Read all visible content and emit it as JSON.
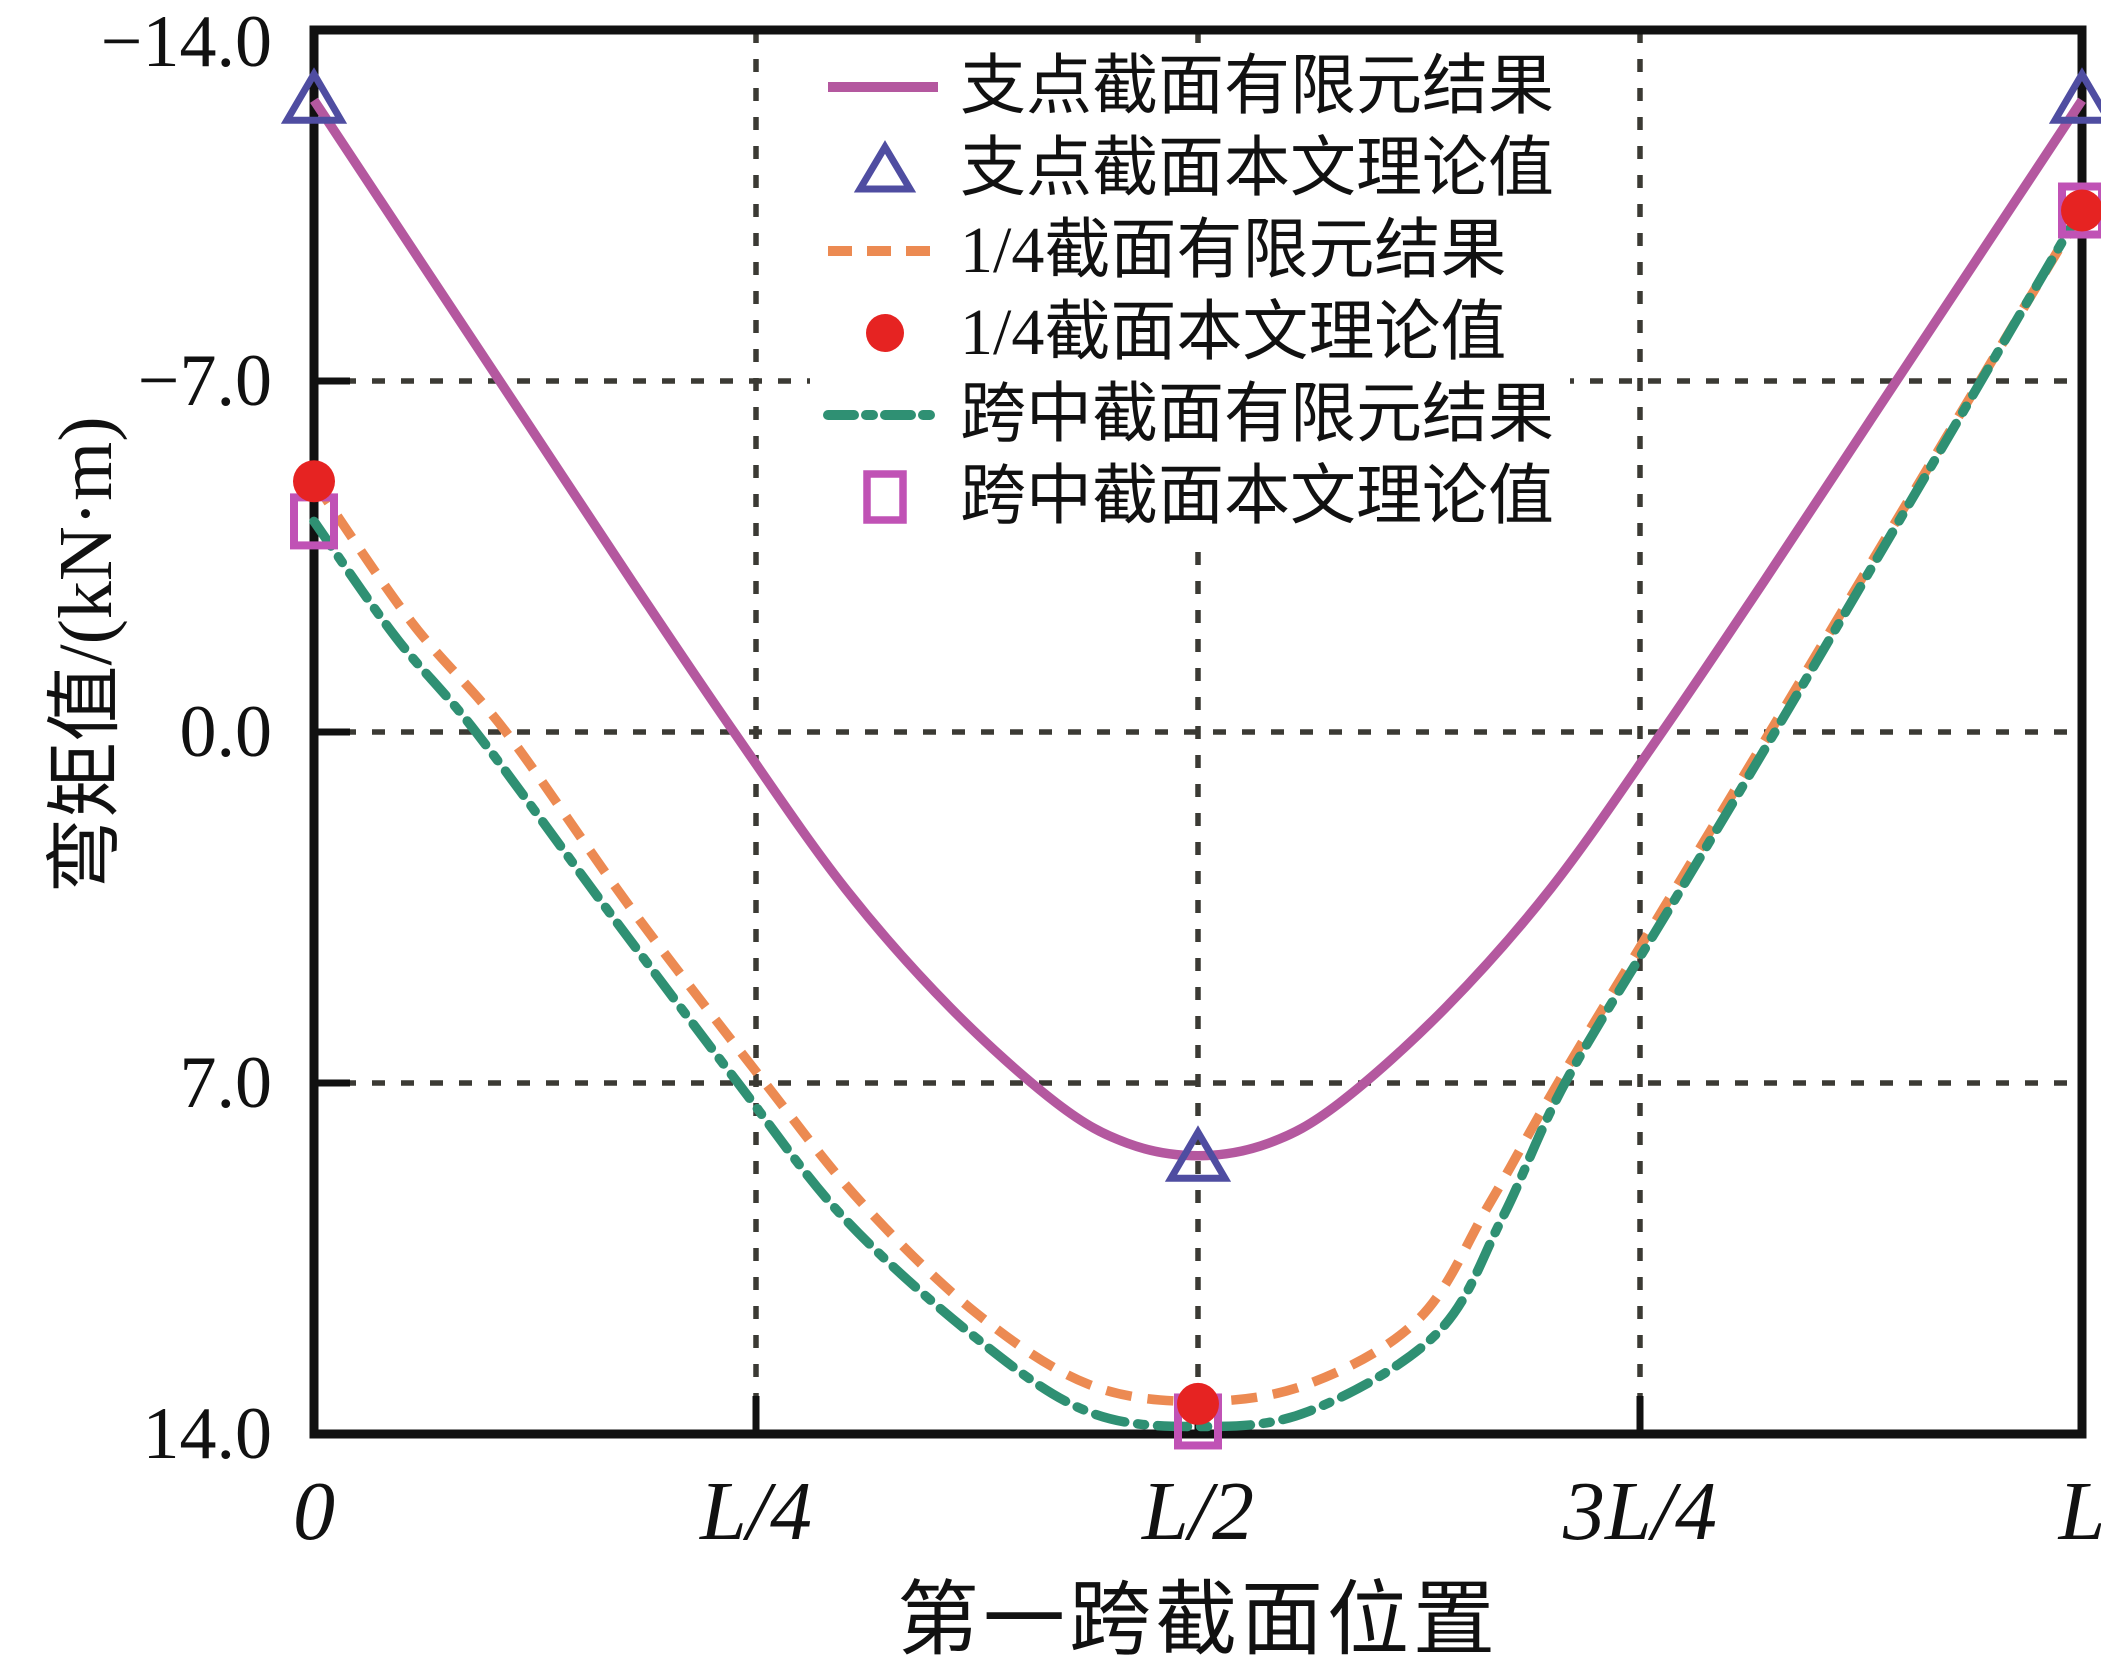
{
  "axes": {
    "y_title": "弯矩值/(kN·m)",
    "x_title": "第一跨截面位置"
  },
  "legend": {
    "items": [
      {
        "label": "支点截面有限元结果",
        "swatch": {
          "kind": "line",
          "style": "solid",
          "color": "#b4589f"
        }
      },
      {
        "label": "支点截面本文理论值",
        "swatch": {
          "kind": "marker",
          "marker": "triangle-open",
          "color": "#4f4da1"
        }
      },
      {
        "label": "1/4截面有限元结果",
        "swatch": {
          "kind": "line",
          "style": "dashed",
          "color": "#ec8a52"
        }
      },
      {
        "label": "1/4截面本文理论值",
        "swatch": {
          "kind": "marker",
          "marker": "circle-filled",
          "color": "#e62322"
        }
      },
      {
        "label": "跨中截面有限元结果",
        "swatch": {
          "kind": "line",
          "style": "dashdot",
          "color": "#2f9073"
        }
      },
      {
        "label": "跨中截面本文理论值",
        "swatch": {
          "kind": "marker",
          "marker": "square-open",
          "color": "#c052b5"
        }
      }
    ]
  },
  "chart_data": {
    "type": "line",
    "title": "",
    "xlabel": "第一跨截面位置",
    "ylabel": "弯矩值/(kN·m)",
    "value_unit": "kN·m",
    "x_axis": {
      "note": "x is fraction of first span length L, 0..1",
      "ticks": [
        {
          "label": "0",
          "t": 0
        },
        {
          "label": "L/4",
          "t": 0.25
        },
        {
          "label": "L/2",
          "t": 0.5
        },
        {
          "label": "3L/4",
          "t": 0.75
        },
        {
          "label": "L",
          "t": 1
        }
      ],
      "gridline_ts": [
        0.25,
        0.5,
        0.75
      ]
    },
    "y_axis": {
      "min": -14.0,
      "max": 14.0,
      "orientation": "negative-up",
      "ticks": [
        {
          "label": "−14.0",
          "value": -14
        },
        {
          "label": "−7.0",
          "value": -7
        },
        {
          "label": "0.0",
          "value": 0
        },
        {
          "label": "7.0",
          "value": 7
        },
        {
          "label": "14.0",
          "value": 14
        }
      ],
      "grid_values": [
        -7,
        0,
        7
      ]
    },
    "grid": {
      "on": true,
      "color": "#3b3a34"
    },
    "axis_color": "#111111",
    "legend_position": "upper center, inside plot",
    "series": [
      {
        "name": "支点截面有限元结果",
        "kind": "line",
        "style": "solid",
        "color": "#b4589f",
        "points": [
          [
            0,
            -12.6
          ],
          [
            0.06,
            -9.4
          ],
          [
            0.12,
            -6.2
          ],
          [
            0.18,
            -3.0
          ],
          [
            0.2375,
            0.0
          ],
          [
            0.3,
            3.1
          ],
          [
            0.36,
            5.5
          ],
          [
            0.42,
            7.4
          ],
          [
            0.46,
            8.2
          ],
          [
            0.5,
            8.45
          ],
          [
            0.54,
            8.2
          ],
          [
            0.58,
            7.4
          ],
          [
            0.64,
            5.5
          ],
          [
            0.7,
            3.1
          ],
          [
            0.7625,
            0.0
          ],
          [
            0.82,
            -3.0
          ],
          [
            0.88,
            -6.2
          ],
          [
            0.94,
            -9.4
          ],
          [
            1,
            -12.6
          ]
        ]
      },
      {
        "name": "支点截面本文理论值",
        "kind": "scatter",
        "marker": "triangle-open",
        "color": "#4f4da1",
        "points": [
          [
            0,
            -12.6
          ],
          [
            0.5,
            8.5
          ],
          [
            1,
            -12.6
          ]
        ]
      },
      {
        "name": "1/4截面有限元结果",
        "kind": "line",
        "style": "dashed",
        "color": "#ec8a52",
        "points": [
          [
            0,
            -5.0
          ],
          [
            0.055,
            -2.2
          ],
          [
            0.1086,
            0.0
          ],
          [
            0.18,
            3.55
          ],
          [
            0.2551,
            7.0
          ],
          [
            0.31,
            9.4
          ],
          [
            0.375,
            11.6
          ],
          [
            0.4375,
            13.0
          ],
          [
            0.5,
            13.35
          ],
          [
            0.5625,
            13.0
          ],
          [
            0.625,
            11.7
          ],
          [
            0.665,
            9.4
          ],
          [
            0.7036,
            7.0
          ],
          [
            0.7636,
            3.5
          ],
          [
            0.8235,
            0.0
          ],
          [
            0.91,
            -5.1
          ],
          [
            1,
            -10.4
          ]
        ]
      },
      {
        "name": "1/4截面本文理论值",
        "kind": "scatter",
        "marker": "circle-filled",
        "color": "#e62322",
        "points": [
          [
            0,
            -5.0
          ],
          [
            0.5,
            13.4
          ],
          [
            1,
            -10.4
          ]
        ]
      },
      {
        "name": "跨中截面有限元结果",
        "kind": "line",
        "style": "dashdot",
        "color": "#2f9073",
        "points": [
          [
            0,
            -4.2
          ],
          [
            0.046,
            -1.9
          ],
          [
            0.0916,
            0.0
          ],
          [
            0.165,
            3.5
          ],
          [
            0.2398,
            7.0
          ],
          [
            0.3,
            9.7
          ],
          [
            0.375,
            12.1
          ],
          [
            0.4375,
            13.55
          ],
          [
            0.5,
            13.85
          ],
          [
            0.5625,
            13.55
          ],
          [
            0.635,
            12.0
          ],
          [
            0.672,
            9.7
          ],
          [
            0.7076,
            7.0
          ],
          [
            0.767,
            3.5
          ],
          [
            0.8263,
            0.0
          ],
          [
            0.913,
            -5.2
          ],
          [
            1,
            -10.45
          ]
        ]
      },
      {
        "name": "跨中截面本文理论值",
        "kind": "scatter",
        "marker": "square-open",
        "color": "#c052b5",
        "points": [
          [
            0,
            -4.2
          ],
          [
            0.5,
            13.75
          ],
          [
            1,
            -10.4
          ]
        ]
      }
    ]
  }
}
